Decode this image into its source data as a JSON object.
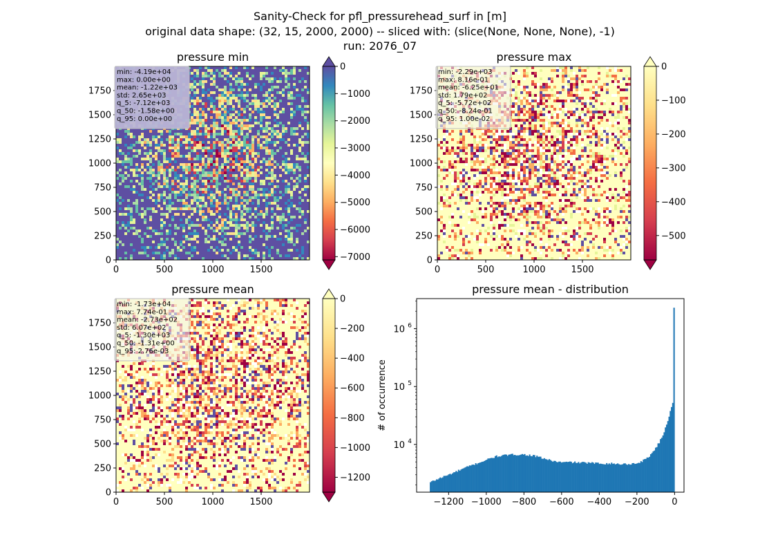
{
  "figure": {
    "suptitle_lines": [
      "Sanity-Check for pfl_pressurehead_surf in [m]",
      "original data shape: (32, 15, 2000, 2000) -- sliced with: (slice(None, None, None), -1)",
      "run: 2076_07"
    ]
  },
  "chart_data": [
    {
      "type": "heatmap",
      "title": "pressure min",
      "xlim": [
        0,
        2000
      ],
      "ylim": [
        0,
        2000
      ],
      "x_ticks": [
        0,
        500,
        1000,
        1500
      ],
      "y_ticks": [
        0,
        250,
        500,
        750,
        1000,
        1250,
        1500,
        1750
      ],
      "x_tick_labels": [
        "0",
        "500",
        "1000",
        "1500"
      ],
      "y_tick_labels": [
        "0",
        "250",
        "500",
        "750",
        "1000",
        "1250",
        "1500",
        "1750"
      ],
      "colormap": "Spectral",
      "colorbar": {
        "vmin": -7120,
        "vmax": 0,
        "extend": "both",
        "ticks": [
          0,
          -1000,
          -2000,
          -3000,
          -4000,
          -5000,
          -6000,
          -7000
        ],
        "tick_labels": [
          "0",
          "−1000",
          "−2000",
          "−3000",
          "−4000",
          "−5000",
          "−6000",
          "−7000"
        ]
      },
      "stats_box": {
        "highlighted": true,
        "lines": [
          "min: -4.19e+04",
          "max: 0.00e+00",
          "mean: -1.22e+03",
          "std: 2.65e+03",
          "q_5: -7.12e+03",
          "q_50: -1.58e+00",
          "q_95: 0.00e+00"
        ]
      }
    },
    {
      "type": "heatmap",
      "title": "pressure max",
      "xlim": [
        0,
        2000
      ],
      "ylim": [
        0,
        2000
      ],
      "x_ticks": [
        0,
        500,
        1000,
        1500
      ],
      "y_ticks": [
        0,
        250,
        500,
        750,
        1000,
        1250,
        1500,
        1750
      ],
      "x_tick_labels": [
        "0",
        "500",
        "1000",
        "1500"
      ],
      "y_tick_labels": [
        "0",
        "250",
        "500",
        "750",
        "1000",
        "1250",
        "1500",
        "1750"
      ],
      "colormap": "Spectral",
      "colorbar": {
        "vmin": -572,
        "vmax": 0,
        "extend": "both",
        "ticks": [
          0,
          -100,
          -200,
          -300,
          -400,
          -500
        ],
        "tick_labels": [
          "0",
          "−100",
          "−200",
          "−300",
          "−400",
          "−500"
        ]
      },
      "stats_box": {
        "highlighted": false,
        "lines": [
          "min: -2.29e+03",
          "max: 8.16e-01",
          "mean: -6.25e+01",
          "std: 1.79e+02",
          "q_5: -5.72e+02",
          "q_50: -8.24e-01",
          "q_95: 1.00e-02"
        ]
      }
    },
    {
      "type": "heatmap",
      "title": "pressure mean",
      "xlim": [
        0,
        2000
      ],
      "ylim": [
        0,
        2000
      ],
      "x_ticks": [
        0,
        500,
        1000,
        1500
      ],
      "y_ticks": [
        0,
        250,
        500,
        750,
        1000,
        1250,
        1500,
        1750
      ],
      "x_tick_labels": [
        "0",
        "500",
        "1000",
        "1500"
      ],
      "y_tick_labels": [
        "0",
        "250",
        "500",
        "750",
        "1000",
        "1250",
        "1500",
        "1750"
      ],
      "colormap": "Spectral",
      "colorbar": {
        "vmin": -1300,
        "vmax": 0,
        "extend": "both",
        "ticks": [
          0,
          -200,
          -400,
          -600,
          -800,
          -1000,
          -1200
        ],
        "tick_labels": [
          "0",
          "−200",
          "−400",
          "−600",
          "−800",
          "−1000",
          "−1200"
        ]
      },
      "stats_box": {
        "highlighted": false,
        "lines": [
          "min: -1.73e+04",
          "max: 7.74e-01",
          "mean: -2.73e+02",
          "std: 6.07e+02",
          "q_5: -1.30e+03",
          "q_50: -1.31e+00",
          "q_95: 2.76e-03"
        ]
      }
    },
    {
      "type": "bar",
      "title": "pressure mean - distribution",
      "ylabel": "# of occurrence",
      "y_scale": "log",
      "xlim": [
        -1370,
        50
      ],
      "ylim": [
        1500,
        3300000
      ],
      "x_ticks": [
        -1200,
        -1000,
        -800,
        -600,
        -400,
        -200,
        0
      ],
      "x_tick_labels": [
        "−1200",
        "−1000",
        "−800",
        "−600",
        "−400",
        "−200",
        "0"
      ],
      "y_ticks": [
        10000,
        100000,
        1000000
      ],
      "y_tick_labels": [
        {
          "base": "10",
          "exp": "4"
        },
        {
          "base": "10",
          "exp": "5"
        },
        {
          "base": "10",
          "exp": "6"
        }
      ],
      "bar_color": "#1f77b4",
      "bin_range": [
        -1300,
        0
      ],
      "anchors": [
        [
          -1300,
          2200
        ],
        [
          -1250,
          2600
        ],
        [
          -1200,
          3000
        ],
        [
          -1150,
          3500
        ],
        [
          -1100,
          4100
        ],
        [
          -1050,
          4700
        ],
        [
          -1000,
          5400
        ],
        [
          -950,
          6200
        ],
        [
          -900,
          6500
        ],
        [
          -850,
          6700
        ],
        [
          -800,
          6700
        ],
        [
          -750,
          6400
        ],
        [
          -700,
          5800
        ],
        [
          -650,
          5200
        ],
        [
          -600,
          4900
        ],
        [
          -550,
          4950
        ],
        [
          -500,
          4850
        ],
        [
          -450,
          4800
        ],
        [
          -400,
          4700
        ],
        [
          -350,
          4700
        ],
        [
          -300,
          4600
        ],
        [
          -250,
          4600
        ],
        [
          -200,
          4700
        ],
        [
          -170,
          5200
        ],
        [
          -140,
          6000
        ],
        [
          -110,
          7800
        ],
        [
          -80,
          11000
        ],
        [
          -60,
          15000
        ],
        [
          -45,
          21000
        ],
        [
          -30,
          30000
        ],
        [
          -20,
          42000
        ],
        [
          -10,
          52000
        ],
        [
          -5,
          50000
        ],
        [
          -2,
          48000
        ],
        [
          0,
          2300000
        ]
      ]
    }
  ]
}
